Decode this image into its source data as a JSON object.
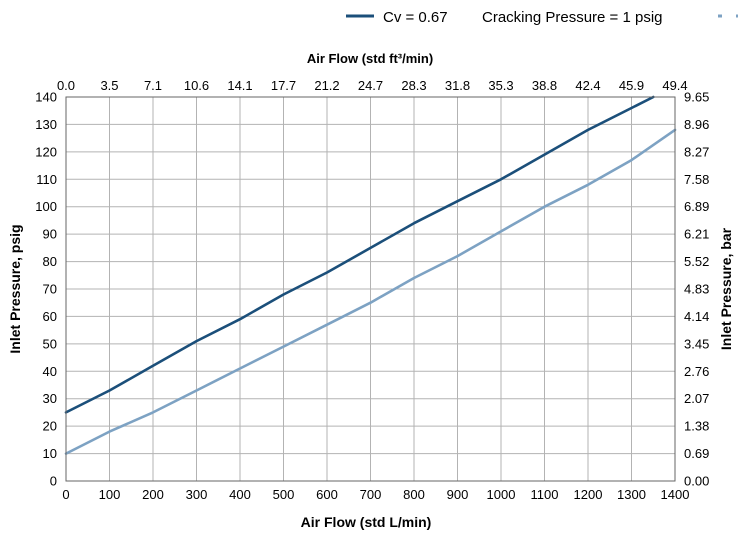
{
  "chart_data": {
    "type": "line",
    "xlabel": "Air Flow (std L/min)",
    "x2label": "Air Flow (std ft³/min)",
    "ylabel": "Inlet Pressure, psig",
    "y2label": "Inlet Pressure, bar",
    "xlim": [
      0,
      1400
    ],
    "ylim": [
      0,
      140
    ],
    "x_ticks": [
      "0",
      "100",
      "200",
      "300",
      "400",
      "500",
      "600",
      "700",
      "800",
      "900",
      "1000",
      "1100",
      "1200",
      "1300",
      "1400"
    ],
    "x2_ticks": [
      "0.0",
      "3.5",
      "7.1",
      "10.6",
      "14.1",
      "17.7",
      "21.2",
      "24.7",
      "28.3",
      "31.8",
      "35.3",
      "38.8",
      "42.4",
      "45.9",
      "49.4"
    ],
    "y_ticks": [
      "0",
      "10",
      "20",
      "30",
      "40",
      "50",
      "60",
      "70",
      "80",
      "90",
      "100",
      "110",
      "120",
      "130",
      "140"
    ],
    "y2_ticks": [
      "0.00",
      "0.69",
      "1.38",
      "2.07",
      "2.76",
      "3.45",
      "4.14",
      "4.83",
      "5.52",
      "6.21",
      "6.89",
      "7.58",
      "8.27",
      "8.96",
      "9.65"
    ],
    "grid": true,
    "legend_position": "top-right",
    "series": [
      {
        "name": "Cv = 0.67",
        "color": "#1b4f7a",
        "x": [
          0,
          100,
          200,
          300,
          400,
          500,
          600,
          700,
          800,
          900,
          1000,
          1100,
          1200,
          1300,
          1350
        ],
        "y": [
          25,
          33,
          42,
          51,
          59,
          68,
          76,
          85,
          94,
          102,
          110,
          119,
          128,
          136,
          140
        ]
      },
      {
        "name": "Cracking Pressure = 1 psig",
        "color": "#7da2c3",
        "x": [
          0,
          100,
          200,
          300,
          400,
          500,
          600,
          700,
          800,
          900,
          1000,
          1100,
          1200,
          1300,
          1400
        ],
        "y": [
          10,
          18,
          25,
          33,
          41,
          49,
          57,
          65,
          74,
          82,
          91,
          100,
          108,
          117,
          128
        ]
      }
    ]
  }
}
